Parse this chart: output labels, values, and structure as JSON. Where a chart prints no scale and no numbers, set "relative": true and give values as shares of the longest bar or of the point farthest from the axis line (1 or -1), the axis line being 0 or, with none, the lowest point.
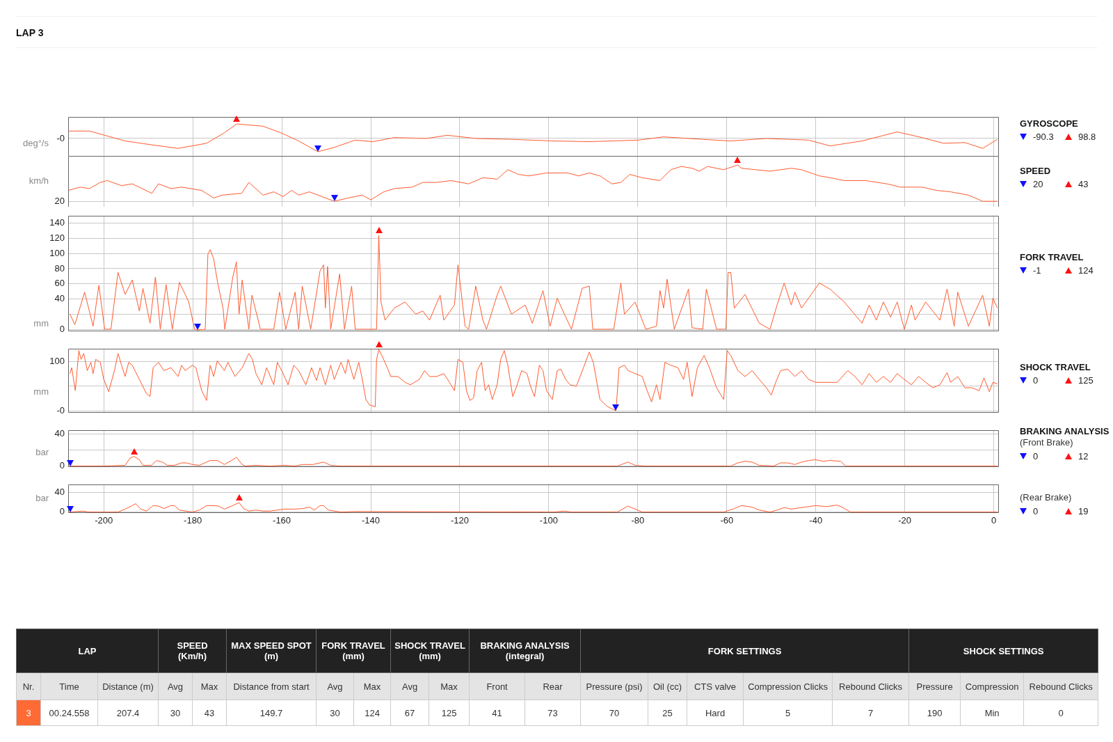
{
  "chart_data": [
    {
      "type": "other",
      "title": "LAP 3"
    },
    {
      "type": "line",
      "legend_title": "GYROSCOPE",
      "ylabel": "deg°/s",
      "xlim": [
        -208,
        1
      ],
      "xticks": [
        -200,
        -180,
        -160,
        -140,
        -120,
        -100,
        -80,
        -60,
        -40,
        -20,
        0
      ],
      "relative": true,
      "grid": true,
      "tick_labels": "y",
      "marker": "none",
      "x": [
        -207.8,
        -203.2,
        -195.2,
        -188.9,
        -183.3,
        -176.9,
        -172.9,
        -170.1,
        -164.2,
        -160.2,
        -156.2,
        -151.9,
        -148.3,
        -143.5,
        -139.5,
        -134.7,
        -127.5,
        -122.8,
        -116.4,
        -108.4,
        -98.9,
        -90.9,
        -79.8,
        -74.2,
        -65.4,
        -59.1,
        -51.1,
        -41.6,
        -36.8,
        -29.6,
        -21.7,
        -16.1,
        -11.3,
        -6.5,
        -2.5,
        0.8
      ],
      "series": [
        {
          "color": "#ff5a2e",
          "values": [
            0.51,
            0.51,
            -0.17,
            -0.45,
            -0.68,
            -0.33,
            0.39,
            1,
            0.84,
            0.39,
            -0.17,
            -0.91,
            -0.62,
            -0.11,
            -0.22,
            0.06,
            0,
            0.22,
            0,
            -0.06,
            -0.17,
            -0.22,
            -0.11,
            0.11,
            -0.06,
            -0.17,
            0,
            -0.11,
            -0.51,
            -0.17,
            0.45,
            0.06,
            -0.33,
            -0.28,
            -0.68,
            -0.06
          ]
        }
      ],
      "annotations": [
        "-0",
        "-90.3",
        "98.8"
      ]
    },
    {
      "type": "line",
      "legend_title": "SPEED",
      "ylabel": "km/h",
      "xlim": [
        -208,
        1
      ],
      "xticks": [
        -200,
        -180,
        -160,
        -140,
        -120,
        -100,
        -80,
        -60,
        -40,
        -20,
        0
      ],
      "relative": true,
      "grid": true,
      "tick_labels": "y",
      "marker": "none",
      "x": [
        -208,
        -205.3,
        -203.2,
        -200.8,
        -199.2,
        -196,
        -193.6,
        -189.2,
        -187.7,
        -184.9,
        -182.5,
        -178,
        -175.3,
        -173.4,
        -169,
        -167.4,
        -164.2,
        -161.8,
        -159.7,
        -157.8,
        -156.2,
        -153.8,
        -148.2,
        -145.1,
        -141.9,
        -140,
        -137.1,
        -134.7,
        -130.7,
        -128.3,
        -125.2,
        -122,
        -118,
        -114.8,
        -111.6,
        -109.2,
        -106.8,
        -104.5,
        -100.5,
        -95.7,
        -93.3,
        -90.9,
        -88.5,
        -85.8,
        -83.8,
        -81.8,
        -79,
        -75,
        -72.6,
        -70.2,
        -67.8,
        -66.2,
        -64.3,
        -60.7,
        -57.6,
        -56.7,
        -53.5,
        -50.3,
        -45.5,
        -43.2,
        -39.2,
        -36.8,
        -33.6,
        -28.8,
        -24,
        -20.9,
        -16.1,
        -12.9,
        -9.7,
        -5.7,
        -2.5,
        0.8
      ],
      "series": [
        {
          "color": "#ff5a2e",
          "values": [
            0.3,
            0.39,
            0.35,
            0.52,
            0.57,
            0.43,
            0.48,
            0.22,
            0.48,
            0.35,
            0.39,
            0.3,
            0.09,
            0.17,
            0.22,
            0.52,
            0.17,
            0.26,
            0.13,
            0.3,
            0.17,
            0.26,
            0,
            0.09,
            0.17,
            0.04,
            0.26,
            0.35,
            0.39,
            0.52,
            0.52,
            0.57,
            0.48,
            0.65,
            0.61,
            0.87,
            0.74,
            0.7,
            0.78,
            0.78,
            0.7,
            0.78,
            0.7,
            0.48,
            0.52,
            0.74,
            0.65,
            0.57,
            0.87,
            0.96,
            0.91,
            0.83,
            0.96,
            0.87,
            1,
            0.91,
            0.87,
            0.83,
            0.91,
            0.87,
            0.7,
            0.65,
            0.57,
            0.57,
            0.48,
            0.39,
            0.39,
            0.3,
            0.26,
            0.17,
            0,
            0
          ]
        }
      ],
      "annotations": [
        "20",
        "20",
        "43"
      ]
    },
    {
      "type": "line",
      "legend_title": "FORK TRAVEL",
      "ylabel": "mm",
      "xlim": [
        -208,
        1
      ],
      "xticks": [
        -200,
        -180,
        -160,
        -140,
        -120,
        -100,
        -80,
        -60,
        -40,
        -20,
        0
      ],
      "ylim": [
        -2,
        150
      ],
      "yticks": [
        0,
        {
          "value": 20,
          "label": null
        },
        40,
        60,
        80,
        100,
        120,
        140
      ],
      "grid": true,
      "tick_labels": "y",
      "marker": "none",
      "x": [
        -207.6,
        -206.5,
        -204.3,
        -202.4,
        -201.1,
        -199.8,
        -198.4,
        -196.8,
        -195.2,
        -193.6,
        -192,
        -191.2,
        -189.6,
        -188.4,
        -187.3,
        -186,
        -184.6,
        -183,
        -180.9,
        -179.6,
        -179,
        -177.2,
        -176.6,
        -176.1,
        -175.3,
        -174.4,
        -173.2,
        -172.8,
        -171,
        -170.2,
        -169.6,
        -168.9,
        -167.4,
        -166.7,
        -164.8,
        -161.8,
        -160.5,
        -159.1,
        -157,
        -156.2,
        -155.4,
        -153.5,
        -151.4,
        -150.6,
        -150.2,
        -149.7,
        -149,
        -147,
        -145.9,
        -144.3,
        -143.5,
        -139.5,
        -138.7,
        -138.2,
        -137.7,
        -136.8,
        -134.7,
        -132.3,
        -129.9,
        -128.3,
        -126.8,
        -124.4,
        -123.6,
        -121.2,
        -120.4,
        -118.8,
        -118,
        -116.4,
        -114.8,
        -114,
        -111.6,
        -110.8,
        -108.4,
        -105.3,
        -103.7,
        -101.3,
        -99.7,
        -98.1,
        -96.5,
        -94.9,
        -92.5,
        -90.9,
        -90.1,
        -85.4,
        -83.8,
        -83,
        -80.6,
        -78.2,
        -75.8,
        -75,
        -74.2,
        -73.4,
        -71.8,
        -68.6,
        -67.8,
        -65.4,
        -64.6,
        -62.3,
        -60.2,
        -59.7,
        -59.1,
        -58.3,
        -55.9,
        -52.7,
        -50.3,
        -48.7,
        -47.1,
        -45.5,
        -44.7,
        -43.2,
        -39.2,
        -36.8,
        -33.6,
        -29.6,
        -28,
        -26.4,
        -24.8,
        -23.2,
        -21.7,
        -20.1,
        -18.5,
        -17.7,
        -15.3,
        -12.1,
        -10.5,
        -8.9,
        -8.1,
        -5.7,
        -2.5,
        -1,
        -0.2,
        0.8
      ],
      "series": [
        {
          "color": "#ff5a2e",
          "values": [
            20,
            6,
            49,
            4,
            58,
            0,
            0,
            75,
            46,
            65,
            24,
            54,
            8,
            69,
            0,
            59,
            0,
            62,
            36,
            0,
            -1,
            0,
            99,
            105,
            93,
            61,
            28,
            0,
            69,
            89,
            20,
            65,
            0,
            45,
            0,
            0,
            49,
            0,
            49,
            0,
            57,
            0,
            77,
            85,
            28,
            83,
            0,
            73,
            0,
            57,
            0,
            0,
            0,
            124,
            36,
            12,
            28,
            36,
            20,
            24,
            12,
            45,
            12,
            32,
            85,
            4,
            0,
            57,
            12,
            0,
            45,
            57,
            20,
            32,
            8,
            51,
            4,
            41,
            20,
            0,
            54,
            57,
            0,
            0,
            61,
            20,
            36,
            0,
            4,
            51,
            28,
            66,
            0,
            53,
            2,
            0,
            53,
            0,
            0,
            75,
            75,
            28,
            46,
            8,
            0,
            32,
            61,
            32,
            49,
            28,
            61,
            53,
            36,
            8,
            32,
            12,
            36,
            16,
            36,
            0,
            32,
            12,
            36,
            12,
            53,
            4,
            49,
            4,
            45,
            4,
            41,
            28
          ]
        }
      ],
      "annotations": [
        "-1",
        "124"
      ]
    },
    {
      "type": "line",
      "legend_title": "SHOCK TRAVEL",
      "ylabel": "mm",
      "xlim": [
        -208,
        1
      ],
      "xticks": [
        -200,
        -180,
        -160,
        -140,
        -120,
        -100,
        -80,
        -60,
        -40,
        -20,
        0
      ],
      "ylim": [
        -3,
        127
      ],
      "yticks": [
        {
          "value": 0,
          "label": "-0"
        },
        {
          "value": 50,
          "label": null
        },
        100
      ],
      "grid": true,
      "tick_labels": "y",
      "marker": "none",
      "x": [
        -207.6,
        -207.2,
        -206.4,
        -205.6,
        -205.1,
        -204.5,
        -203.7,
        -202.9,
        -202.4,
        -201.8,
        -200.8,
        -200,
        -198.9,
        -197.6,
        -196.8,
        -196,
        -195.2,
        -194.4,
        -193.6,
        -192,
        -190.4,
        -189.6,
        -188.9,
        -187.7,
        -186.5,
        -184.9,
        -183.3,
        -182.5,
        -181.7,
        -180.1,
        -179.3,
        -178,
        -176.9,
        -176.1,
        -175.3,
        -174.5,
        -172.9,
        -172.1,
        -170.5,
        -168.9,
        -167.4,
        -166.6,
        -165.8,
        -164.5,
        -163.4,
        -161.8,
        -161,
        -159.7,
        -158.6,
        -157.3,
        -156.2,
        -154.6,
        -153.3,
        -152.2,
        -151.4,
        -150.2,
        -149,
        -148.2,
        -146.7,
        -145.7,
        -145.1,
        -143.8,
        -142.7,
        -141.9,
        -141.1,
        -140.3,
        -139,
        -138.7,
        -138.2,
        -137.4,
        -136.3,
        -135.5,
        -133.9,
        -132.3,
        -131.1,
        -129.1,
        -127.9,
        -126.8,
        -125.2,
        -123.6,
        -122.3,
        -121.2,
        -120.4,
        -119.3,
        -118.5,
        -117.7,
        -116.9,
        -116.1,
        -115.1,
        -114.3,
        -113.5,
        -112.7,
        -111.6,
        -110.8,
        -110,
        -109.2,
        -108.1,
        -107.2,
        -106.1,
        -104.9,
        -104,
        -103.2,
        -102.1,
        -101.3,
        -100.5,
        -99.2,
        -98.1,
        -97.3,
        -96.2,
        -95.2,
        -93.8,
        -92.2,
        -90.9,
        -90,
        -88.5,
        -86.9,
        -84.9,
        -84.2,
        -83,
        -82.2,
        -80.6,
        -79,
        -77.9,
        -76.9,
        -75.8,
        -75,
        -73.9,
        -72.6,
        -71,
        -69.7,
        -68.9,
        -67.8,
        -66.6,
        -65.1,
        -63.9,
        -62.3,
        -60.7,
        -59.9,
        -59.1,
        -57.5,
        -55.9,
        -54.3,
        -52.7,
        -51.1,
        -50,
        -49,
        -47.9,
        -46.3,
        -44.7,
        -43.2,
        -41.6,
        -40,
        -37.6,
        -35.2,
        -32.8,
        -31.2,
        -29.6,
        -28,
        -26.4,
        -24.8,
        -23.2,
        -21.7,
        -20.1,
        -18.5,
        -16.9,
        -15.3,
        -13.7,
        -12.1,
        -10.5,
        -9.7,
        -8.1,
        -6.5,
        -4.9,
        -3.3,
        -2.2,
        -1,
        -0.2,
        0.8
      ],
      "series": [
        {
          "color": "#ff5a2e",
          "values": [
            76,
            88,
            41,
            123,
            105,
            117,
            82,
            99,
            76,
            105,
            99,
            64,
            39,
            82,
            117,
            93,
            70,
            99,
            93,
            64,
            35,
            29,
            88,
            99,
            82,
            88,
            70,
            93,
            82,
            93,
            88,
            41,
            21,
            93,
            70,
            102,
            82,
            99,
            70,
            88,
            117,
            105,
            76,
            53,
            88,
            53,
            99,
            76,
            53,
            93,
            82,
            53,
            88,
            62,
            88,
            53,
            93,
            64,
            99,
            76,
            105,
            64,
            99,
            64,
            23,
            12,
            8,
            105,
            125,
            111,
            88,
            70,
            70,
            58,
            53,
            64,
            82,
            70,
            70,
            76,
            58,
            41,
            105,
            99,
            41,
            21,
            26,
            82,
            99,
            41,
            53,
            23,
            53,
            105,
            123,
            93,
            29,
            50,
            82,
            76,
            47,
            29,
            93,
            82,
            41,
            23,
            82,
            85,
            64,
            53,
            50,
            88,
            120,
            99,
            23,
            9,
            0,
            88,
            93,
            82,
            76,
            70,
            41,
            18,
            53,
            23,
            99,
            93,
            88,
            64,
            99,
            29,
            88,
            113,
            88,
            47,
            23,
            123,
            113,
            82,
            70,
            82,
            64,
            47,
            32,
            58,
            82,
            85,
            70,
            82,
            64,
            58,
            58,
            58,
            82,
            70,
            53,
            76,
            58,
            70,
            58,
            76,
            64,
            53,
            70,
            58,
            47,
            53,
            78,
            58,
            70,
            47,
            47,
            41,
            67,
            39,
            58,
            55
          ]
        }
      ],
      "annotations": [
        "0",
        "125"
      ]
    },
    {
      "type": "line",
      "legend_title": "BRAKING ANALYSIS\n(Front Brake)",
      "ylabel": "bar",
      "xlim": [
        -208,
        1
      ],
      "xticks": [
        -200,
        -180,
        -160,
        -140,
        -120,
        -100,
        -80,
        -60,
        -40,
        -20,
        0
      ],
      "ylim": [
        -0.5,
        45
      ],
      "yticks": [
        0,
        {
          "value": 20,
          "label": null
        },
        40
      ],
      "grid": true,
      "tick_labels": "y",
      "marker": "none",
      "x": [
        -207.6,
        -202.4,
        -200,
        -195.2,
        -194.1,
        -193.2,
        -192,
        -191.2,
        -189.3,
        -188.1,
        -186.8,
        -185.7,
        -184.1,
        -182.5,
        -181.4,
        -180.1,
        -178.5,
        -176.9,
        -176.1,
        -174.5,
        -172.9,
        -171.3,
        -170.2,
        -168.9,
        -168.2,
        -165.8,
        -162.6,
        -159.4,
        -157,
        -155.4,
        -153,
        -150.6,
        -149,
        -146.7,
        -84.6,
        -82.2,
        -80.6,
        -78.2,
        -59.1,
        -57.5,
        -55.9,
        -54.3,
        -52.7,
        -49.5,
        -47.9,
        -46.3,
        -44.7,
        -43.2,
        -41.6,
        -40,
        -38.4,
        -36.8,
        -34.4,
        -33.3,
        0.8
      ],
      "series": [
        {
          "color": "#ff5a2e",
          "values": [
            0,
            0,
            0,
            1,
            10,
            12,
            8,
            1,
            1,
            7,
            5,
            1,
            1,
            4,
            4,
            2,
            1,
            5,
            7,
            7,
            2,
            7,
            11,
            2,
            0,
            1,
            0,
            1,
            0,
            2,
            2,
            5,
            1,
            0,
            0,
            5,
            1,
            0,
            0,
            4,
            6,
            5,
            1,
            0,
            4,
            4,
            2,
            5,
            7,
            8,
            6,
            7,
            6,
            0,
            0
          ]
        }
      ],
      "annotations": [
        "0",
        "12"
      ]
    },
    {
      "type": "line",
      "legend_title": "(Rear Brake)",
      "ylabel": "bar",
      "xlim": [
        -208,
        1
      ],
      "xticks": [
        -200,
        -180,
        -160,
        -140,
        -120,
        -100,
        -80,
        -60,
        -40,
        -20,
        0
      ],
      "ylim": [
        -0.5,
        56
      ],
      "yticks": [
        0,
        40
      ],
      "grid": true,
      "marker": "none",
      "x": [
        -207.6,
        -204.8,
        -203.2,
        -196.8,
        -195.2,
        -193.6,
        -192.8,
        -191.7,
        -190.4,
        -188.9,
        -187.7,
        -186.5,
        -184.9,
        -184.1,
        -183,
        -180.1,
        -178.5,
        -176.9,
        -175.3,
        -174.2,
        -172.9,
        -171.3,
        -169.6,
        -168.6,
        -167.4,
        -165.8,
        -164.2,
        -162.6,
        -159.4,
        -157,
        -155.4,
        -153.8,
        -152.7,
        -151.4,
        -150.6,
        -149.5,
        -148.2,
        -146.7,
        -143.5,
        -98.9,
        -96.5,
        -94.9,
        -84.6,
        -82.2,
        -80.6,
        -79,
        -60.7,
        -58.3,
        -56.7,
        -54.3,
        -52.7,
        -50.3,
        -48.7,
        -47.1,
        -45.5,
        -43.2,
        -40,
        -37.6,
        -35.2,
        -33.9,
        -32.2,
        0.8
      ],
      "series": [
        {
          "color": "#ff5a2e",
          "values": [
            0,
            2,
            0,
            0,
            6,
            13,
            17,
            6,
            2,
            13,
            12,
            7,
            13,
            13,
            4,
            0,
            4,
            13,
            13,
            12,
            6,
            12,
            19,
            7,
            2,
            4,
            2,
            2,
            6,
            6,
            7,
            10,
            4,
            13,
            13,
            4,
            2,
            0,
            1,
            0,
            2,
            0,
            0,
            12,
            6,
            0,
            0,
            7,
            13,
            10,
            4,
            0,
            4,
            9,
            6,
            9,
            13,
            11,
            14,
            9,
            0,
            0
          ]
        }
      ],
      "annotations": [
        "0",
        "19"
      ]
    },
    {
      "type": "other",
      "annotations": [
        "LAP",
        "SPEED\n(Km/h)",
        "MAX SPEED SPOT\n(m)",
        "FORK TRAVEL\n(mm)",
        "SHOCK TRAVEL\n(mm)",
        "BRAKING ANALYSIS\n(integral)",
        "FORK SETTINGS",
        "SHOCK SETTINGS",
        "Nr.",
        "Time",
        "Distance (m)",
        "Avg",
        "Max",
        "Distance from start",
        "Avg",
        "Max",
        "Avg",
        "Max",
        "Front",
        "Rear",
        "Pressure (psi)",
        "Oil (cc)",
        "CTS valve",
        "Compression Clicks",
        "Rebound Clicks",
        "Pressure",
        "Compression",
        "Rebound Clicks",
        "3",
        "00.24.558",
        "207.4",
        "30",
        "43",
        "149.7",
        "30",
        "124",
        "67",
        "125",
        "41",
        "73",
        "70",
        "25",
        "Hard",
        "5",
        "7",
        "190",
        "Min",
        "0"
      ]
    }
  ]
}
